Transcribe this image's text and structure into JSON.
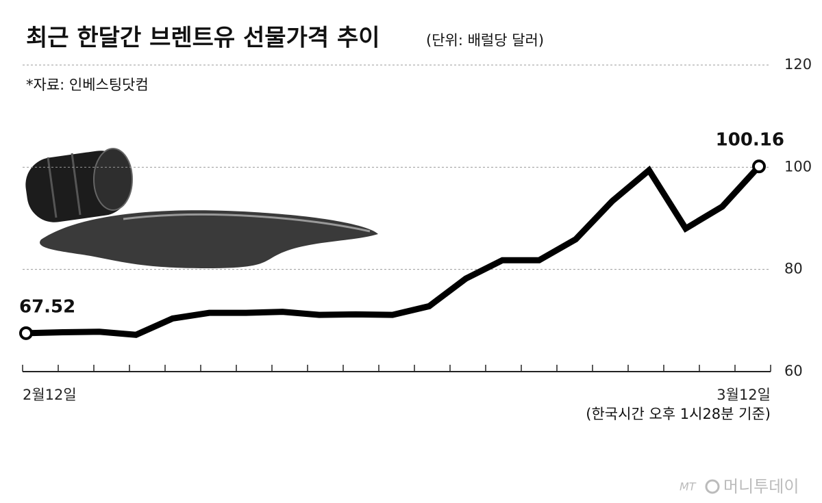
{
  "chart_data": {
    "type": "line",
    "title": "최근 한달간 브렌트유 선물가격 추이",
    "unit": "(단위: 배럴당 달러)",
    "source": "*자료: 인베스팅닷컴",
    "note": "(한국시간 오후 1시28분 기준)",
    "logo": "머니투데이",
    "categories": [
      "2월12일",
      null,
      null,
      null,
      null,
      null,
      null,
      null,
      null,
      null,
      null,
      null,
      null,
      null,
      null,
      null,
      null,
      null,
      null,
      null,
      "3월12일"
    ],
    "values": [
      67.52,
      67.7,
      67.8,
      67.2,
      70.4,
      71.5,
      71.5,
      71.7,
      71.1,
      71.2,
      71.1,
      72.8,
      78.2,
      81.8,
      81.8,
      85.9,
      93.4,
      99.4,
      88.0,
      92.3,
      100.16
    ],
    "value_labels": [
      "67.52",
      null,
      null,
      null,
      null,
      null,
      null,
      null,
      null,
      null,
      null,
      null,
      null,
      null,
      null,
      null,
      null,
      null,
      null,
      null,
      "100.16"
    ],
    "color": "#000000",
    "ylim": [
      60,
      120
    ],
    "yticks": [
      60,
      80,
      100,
      120
    ],
    "grid": true
  }
}
